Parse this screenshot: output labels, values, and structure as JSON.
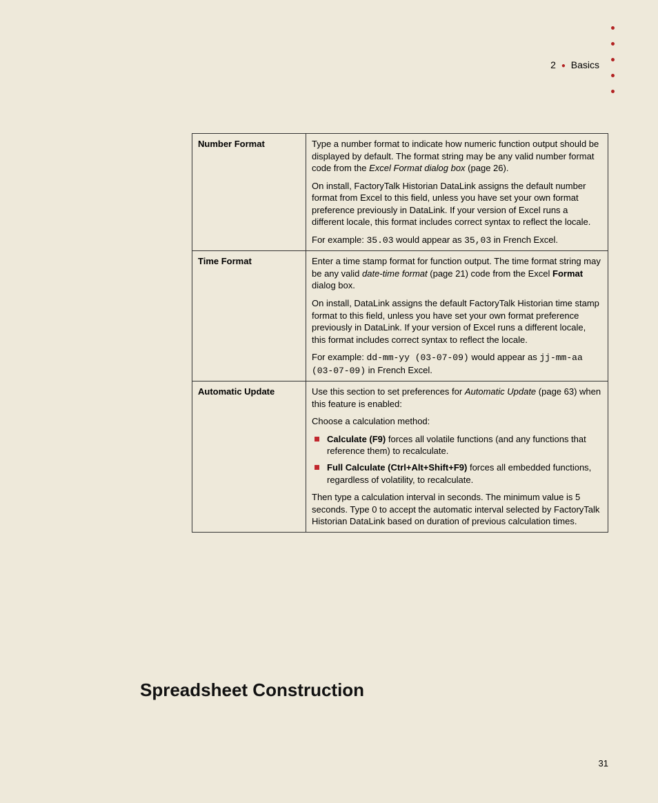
{
  "header": {
    "chapter_number": "2",
    "chapter_name": "Basics"
  },
  "table": {
    "rows": [
      {
        "label": "Number Format",
        "body_html": "<p>Type a number format to indicate how numeric function output should be displayed by default. The format string may be any valid number format code from the <span class=\"italic\">Excel Format dialog box</span> (page 26).</p><p>On install, FactoryTalk Historian DataLink assigns the default number format from Excel to this field, unless you have set your own format preference previously in DataLink. If your version of Excel runs a different locale, this format includes correct syntax to reflect the locale.</p><p>For example: <span class=\"mono\">35.03</span> would appear as <span class=\"mono\">35,03</span> in French Excel.</p>"
      },
      {
        "label": "Time Format",
        "body_html": "<p>Enter a time stamp format for function output. The time format string may be any valid <span class=\"italic\">date-time format</span> (page 21) code from the Excel <span class=\"bold\">Format</span> dialog box.</p><p>On install, DataLink assigns the default FactoryTalk Historian time stamp format to this field, unless you have set your own format preference previously in DataLink. If your version of Excel runs a different locale, this format includes correct syntax to reflect the locale.</p><p>For example: <span class=\"mono\">dd-mm-yy (03-07-09)</span> would appear as <span class=\"mono\">jj-mm-aa (03-07-09)</span> in French Excel.</p>"
      },
      {
        "label": "Automatic Update",
        "body_html": "<p>Use this section to set preferences for <span class=\"italic\">Automatic Update</span> (page 63) when this feature is enabled:</p><p>Choose a calculation method:</p><ul class=\"bullets\"><li><span class=\"bold\">Calculate (F9)</span> forces all volatile functions (and any functions that reference them) to recalculate.</li><li><span class=\"bold\">Full Calculate (Ctrl+Alt+Shift+F9)</span> forces all embedded functions, regardless of volatility, to recalculate.</li></ul><p>Then type a calculation interval in seconds. The minimum value is 5 seconds. Type 0 to accept the automatic interval selected by FactoryTalk Historian DataLink based on duration of previous calculation times.</p>"
      }
    ]
  },
  "section_heading": "Spreadsheet Construction",
  "page_number": "31"
}
